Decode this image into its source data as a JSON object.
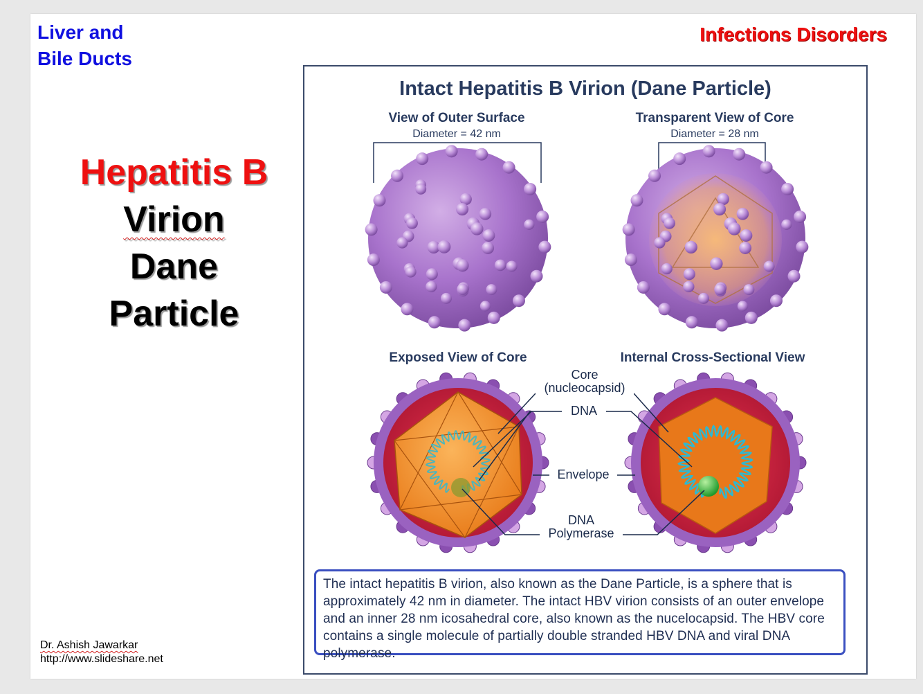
{
  "slide": {
    "topic_line1": "Liver and",
    "topic_line2": "Bile Ducts",
    "category": "Infections Disorders",
    "heading": {
      "line1": "Hepatitis B",
      "line2": "Virion",
      "line3": "Dane",
      "line4": "Particle"
    },
    "credit": {
      "author": "Dr. Ashish Jawarkar",
      "url": "http://www.slideshare.net"
    }
  },
  "figure": {
    "title": "Intact Hepatitis B Virion (Dane Particle)",
    "panels": {
      "outer_title": "View of Outer Surface",
      "outer_diameter": "Diameter = 42 nm",
      "transparent_title": "Transparent View of Core",
      "transparent_diameter": "Diameter = 28 nm",
      "exposed_title": "Exposed View of Core",
      "cross_title": "Internal Cross-Sectional View"
    },
    "callouts": {
      "core_line1": "Core",
      "core_line2": "(nucleocapsid)",
      "dna": "DNA",
      "envelope": "Envelope",
      "polymerase_line1": "DNA",
      "polymerase_line2": "Polymerase"
    },
    "caption": "The intact hepatitis B virion, also known as the Dane Particle, is a sphere that is approximately 42 nm in diameter. The intact HBV virion consists of an outer envelope and an inner 28 nm icosahedral core, also known as the nucelocapsid. The HBV core contains a single molecule of partially double stranded HBV DNA and viral DNA polymerase."
  },
  "colors": {
    "topic_blue": "#1010e0",
    "heading_red": "#ee1010",
    "figure_navy": "#283a5e",
    "envelope_purple": "#9a62c0",
    "core_orange": "#f08a20",
    "envelope_red": "#c81e3c",
    "dna_cyan": "#2fb8d0",
    "polymerase_green": "#3ac040",
    "caption_border": "#3a4fc0"
  }
}
